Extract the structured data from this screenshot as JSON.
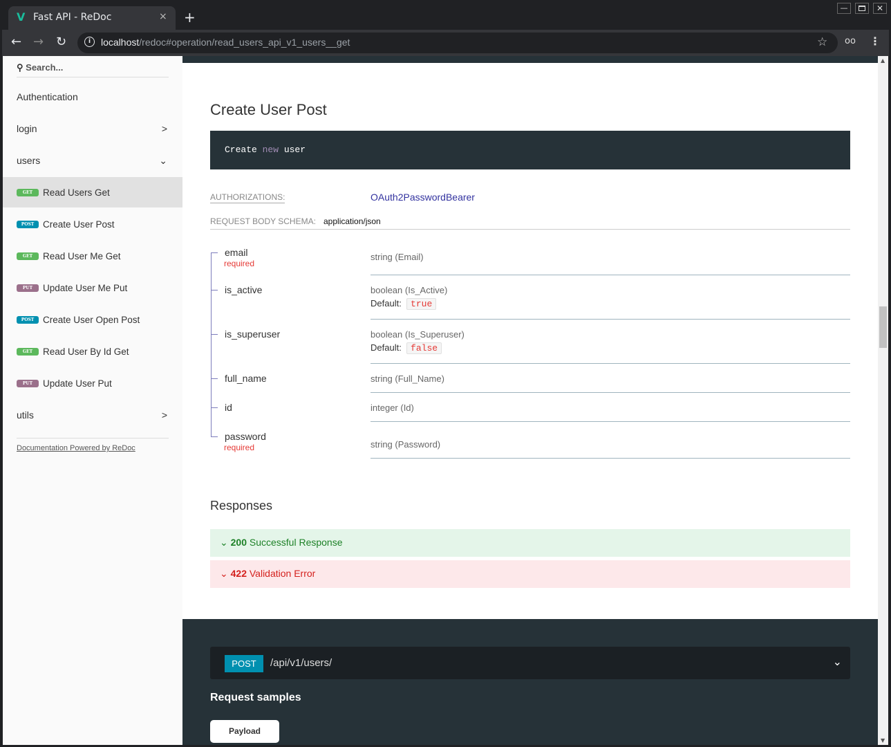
{
  "browser": {
    "tab_title": "Fast API - ReDoc",
    "url_host": "localhost",
    "url_path": "/redoc#operation/read_users_api_v1_users__get"
  },
  "sidebar": {
    "search_placeholder": "Search...",
    "items": [
      {
        "label": "Authentication"
      },
      {
        "label": "login",
        "chevron": "right"
      },
      {
        "label": "users",
        "chevron": "down"
      }
    ],
    "operations": [
      {
        "method": "GET",
        "label": "Read Users Get",
        "active": true
      },
      {
        "method": "POST",
        "label": "Create User Post"
      },
      {
        "method": "GET",
        "label": "Read User Me Get"
      },
      {
        "method": "PUT",
        "label": "Update User Me Put"
      },
      {
        "method": "POST",
        "label": "Create User Open Post"
      },
      {
        "method": "GET",
        "label": "Read User By Id Get"
      },
      {
        "method": "PUT",
        "label": "Update User Put"
      }
    ],
    "utils": "utils",
    "footer": "Documentation Powered by ReDoc"
  },
  "colors": {
    "GET": "#5cb85c",
    "POST": "#0090b0",
    "PUT": "#9b708b"
  },
  "main": {
    "title": "Create User Post",
    "description_parts": [
      "Create ",
      "new",
      " user"
    ],
    "auth_label": "AUTHORIZATIONS:",
    "auth_value": "OAuth2PasswordBearer",
    "schema_label": "REQUEST BODY SCHEMA:",
    "schema_value": "application/json",
    "default_label": "Default:",
    "fields": [
      {
        "name": "email",
        "required": "required",
        "type": "string (Email)"
      },
      {
        "name": "is_active",
        "type": "boolean (Is_Active)",
        "default": "true"
      },
      {
        "name": "is_superuser",
        "type": "boolean (Is_Superuser)",
        "default": "false"
      },
      {
        "name": "full_name",
        "type": "string (Full_Name)"
      },
      {
        "name": "id",
        "type": "integer (Id)"
      },
      {
        "name": "password",
        "required": "required",
        "type": "string (Password)"
      }
    ],
    "responses_title": "Responses",
    "responses": [
      {
        "code": "200",
        "label": "Successful Response"
      },
      {
        "code": "422",
        "label": "Validation Error"
      }
    ]
  },
  "right": {
    "method": "POST",
    "path": "/api/v1/users/",
    "samples_title": "Request samples",
    "payload_tab": "Payload"
  }
}
